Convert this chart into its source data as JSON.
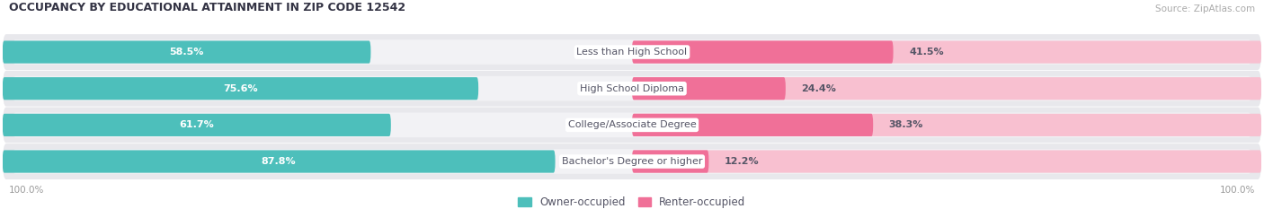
{
  "title": "OCCUPANCY BY EDUCATIONAL ATTAINMENT IN ZIP CODE 12542",
  "source": "Source: ZipAtlas.com",
  "categories": [
    "Less than High School",
    "High School Diploma",
    "College/Associate Degree",
    "Bachelor's Degree or higher"
  ],
  "owner_pct": [
    58.5,
    75.6,
    61.7,
    87.8
  ],
  "renter_pct": [
    41.5,
    24.4,
    38.3,
    12.2
  ],
  "owner_color": "#4dbfbb",
  "renter_color": "#f07098",
  "renter_color_light": "#f8c0d0",
  "row_bg_color": "#e8e8ec",
  "row_inner_bg": "#f2f2f5",
  "label_text_color": "#ffffff",
  "category_text_color": "#555566",
  "title_color": "#333344",
  "source_color": "#aaaaaa",
  "axis_label_color": "#999999",
  "legend_owner": "Owner-occupied",
  "legend_renter": "Renter-occupied",
  "figsize": [
    14.06,
    2.33
  ],
  "dpi": 100
}
